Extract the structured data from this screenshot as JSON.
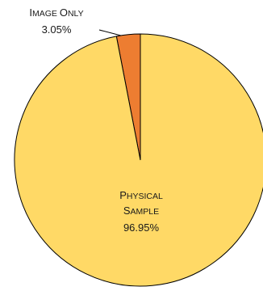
{
  "chart_data": {
    "type": "pie",
    "title": "",
    "start_angle": "top",
    "direction": "counterclockwise",
    "slices": [
      {
        "label_line1": "Physical",
        "label_line2": "Sample",
        "value_label": "96.95%",
        "value": 96.95,
        "color": "#ffd966"
      },
      {
        "label_line1": "Image Only",
        "label_line2": "",
        "value_label": "3.05%",
        "value": 3.05,
        "color": "#ed7d31"
      }
    ],
    "edge_color": "#000000",
    "leader_line": true
  }
}
